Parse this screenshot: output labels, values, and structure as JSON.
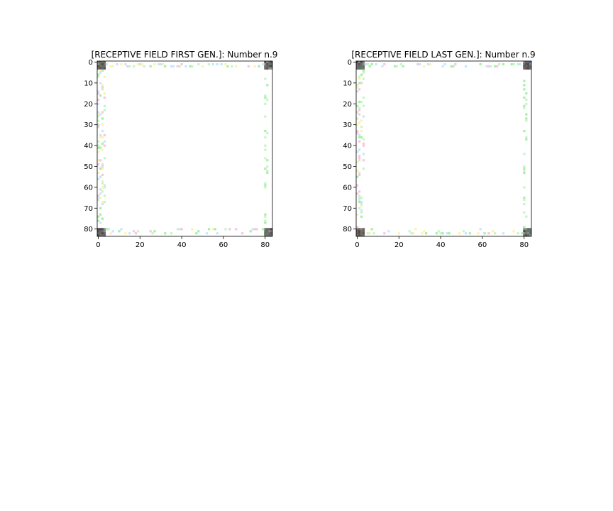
{
  "chart_data": [
    {
      "type": "heatmap",
      "title": "[RECEPTIVE FIELD FIRST GEN.]: Number n.9",
      "xlim": [
        0,
        84
      ],
      "ylim": [
        0,
        84
      ],
      "x_ticks": [
        "0",
        "20",
        "40",
        "60",
        "80"
      ],
      "y_ticks": [
        "0",
        "10",
        "20",
        "30",
        "40",
        "50",
        "60",
        "70",
        "80"
      ],
      "grid": false,
      "content": "mostly white field with sparse pastel pixels along the border and dark multicolor 4x4 corner blocks",
      "colors": {
        "corner": "#6a6a6a",
        "border_dots": [
          "#f7c8e0",
          "#fff2a8",
          "#c8f5c8",
          "#c8e6ff",
          "#a8f0a8"
        ]
      }
    },
    {
      "type": "heatmap",
      "title": "[RECEPTIVE FIELD LAST GEN.]: Number n.9",
      "xlim": [
        0,
        84
      ],
      "ylim": [
        0,
        84
      ],
      "x_ticks": [
        "0",
        "20",
        "40",
        "60",
        "80"
      ],
      "y_ticks": [
        "0",
        "10",
        "20",
        "30",
        "40",
        "50",
        "60",
        "70",
        "80"
      ],
      "grid": false,
      "content": "mostly white field with sparse pastel pixels along the border and dark multicolor 4x4 corner blocks",
      "colors": {
        "corner": "#6a6a6a",
        "border_dots": [
          "#f7c8e0",
          "#fff2a8",
          "#c8f5c8",
          "#c8e6ff",
          "#a8f0a8"
        ]
      }
    }
  ]
}
